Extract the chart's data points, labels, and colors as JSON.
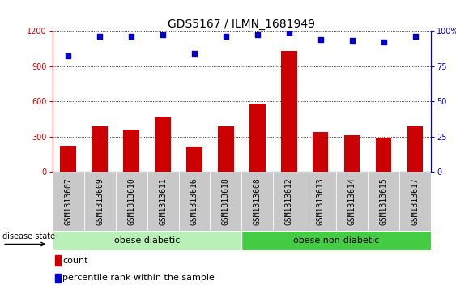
{
  "title": "GDS5167 / ILMN_1681949",
  "samples": [
    "GSM1313607",
    "GSM1313609",
    "GSM1313610",
    "GSM1313611",
    "GSM1313616",
    "GSM1313618",
    "GSM1313608",
    "GSM1313612",
    "GSM1313613",
    "GSM1313614",
    "GSM1313615",
    "GSM1313617"
  ],
  "counts": [
    220,
    390,
    360,
    470,
    215,
    390,
    580,
    1030,
    340,
    310,
    295,
    390
  ],
  "percentiles": [
    82,
    96,
    96,
    97,
    84,
    96,
    97,
    99,
    94,
    93,
    92,
    96
  ],
  "ylim_left": [
    0,
    1200
  ],
  "ylim_right": [
    0,
    100
  ],
  "yticks_left": [
    0,
    300,
    600,
    900,
    1200
  ],
  "yticks_right": [
    0,
    25,
    50,
    75,
    100
  ],
  "group1_label": "obese diabetic",
  "group2_label": "obese non-diabetic",
  "group1_count": 6,
  "group2_count": 6,
  "bar_color": "#cc0000",
  "dot_color": "#0000cc",
  "left_axis_color": "#cc0000",
  "right_axis_color": "#0000cc",
  "plot_bg_color": "#ffffff",
  "xlabels_bg_color": "#c8c8c8",
  "group1_bg": "#b8f0b8",
  "group2_bg": "#44cc44",
  "disease_state_label": "disease state",
  "legend_count_label": "count",
  "legend_pct_label": "percentile rank within the sample",
  "title_fontsize": 10,
  "tick_fontsize": 7,
  "label_fontsize": 8,
  "group_label_fontsize": 8
}
